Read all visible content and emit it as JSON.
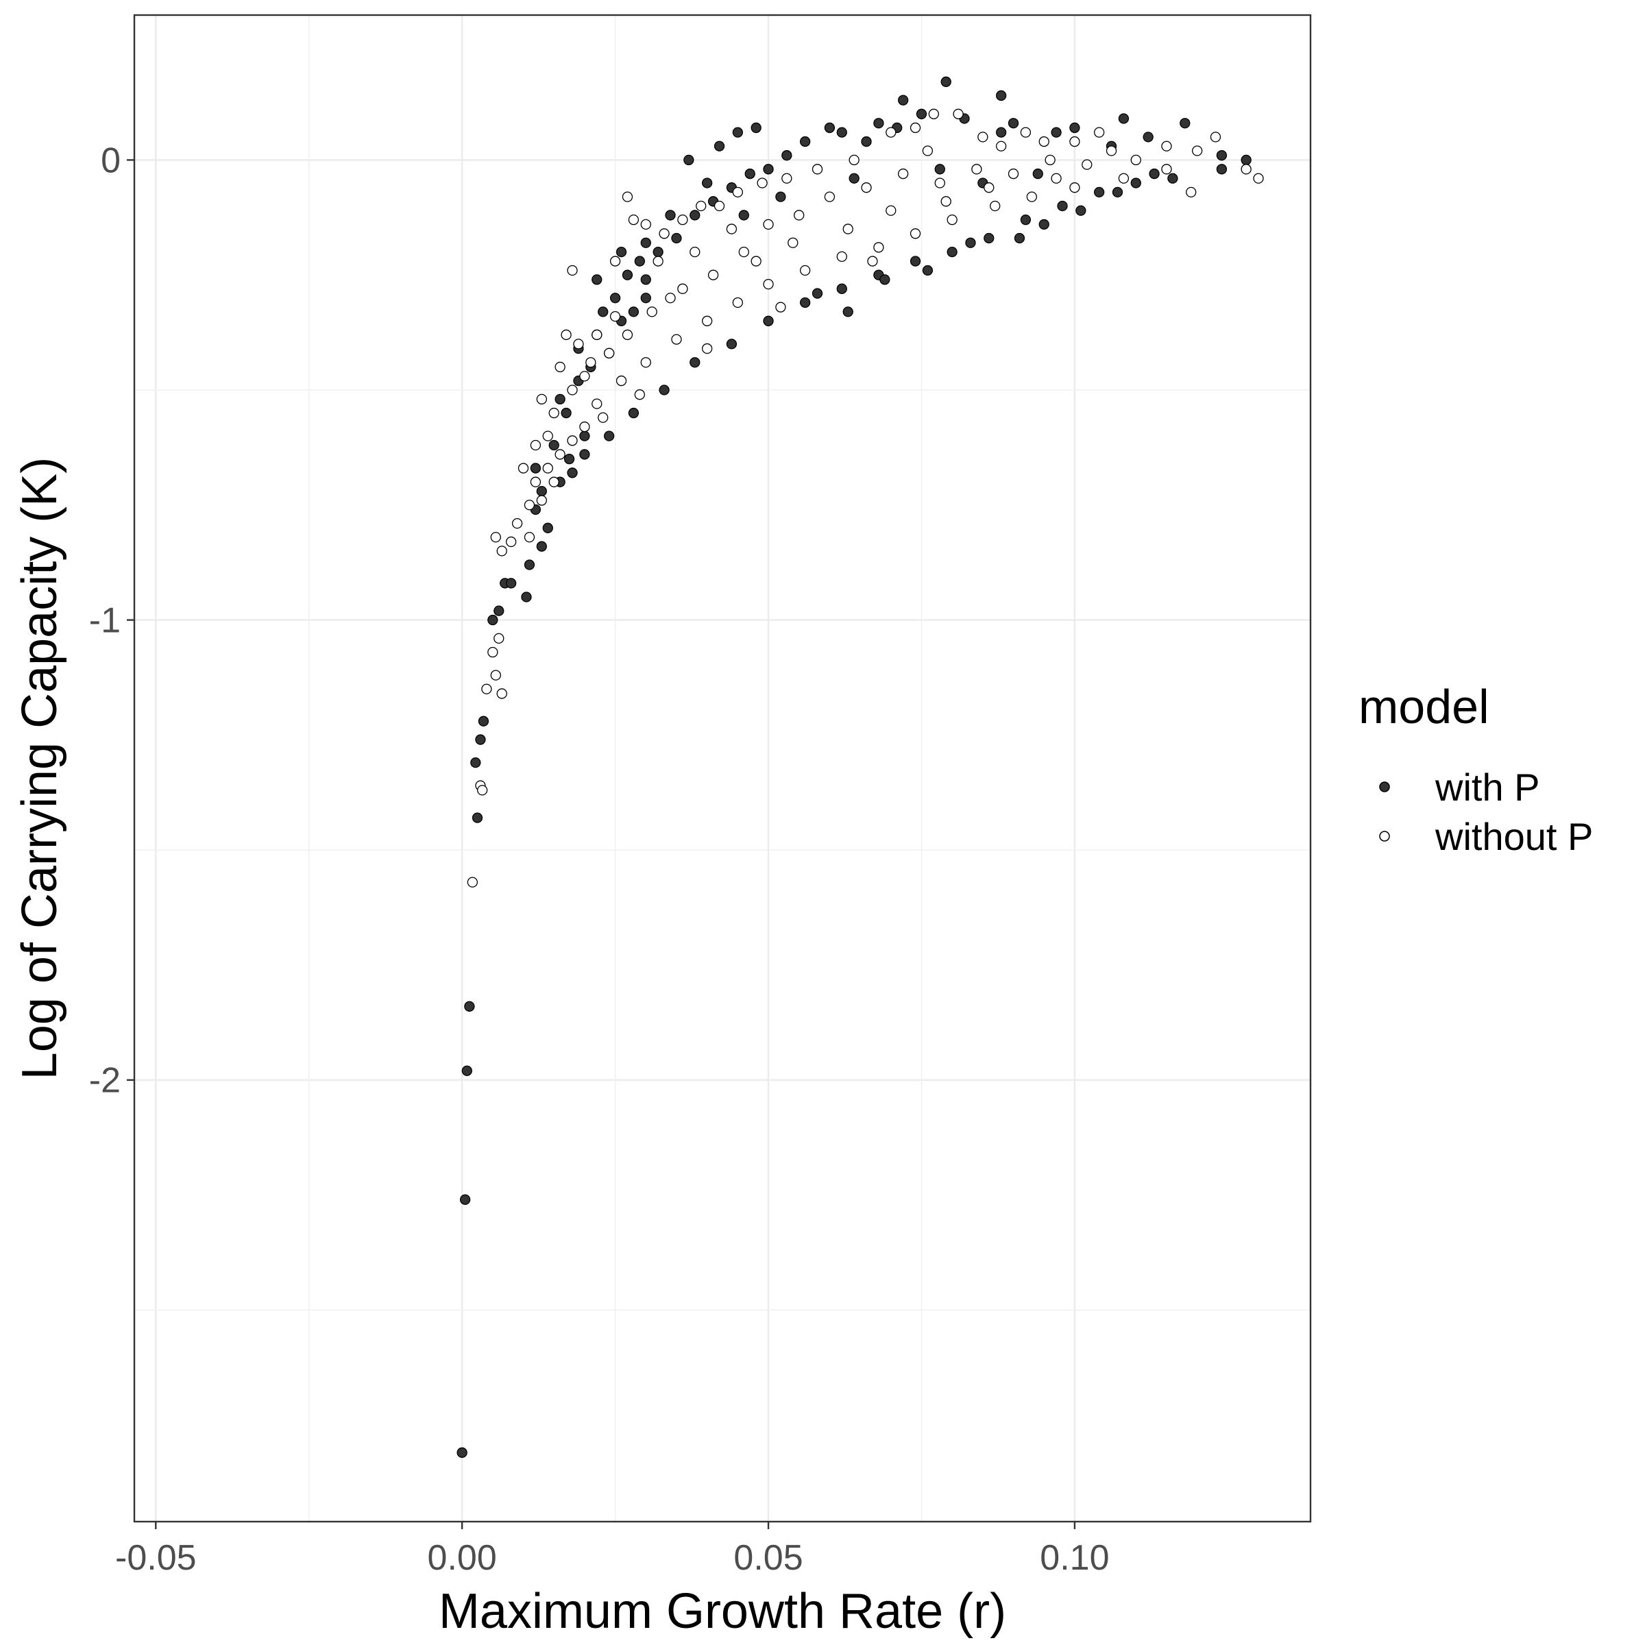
{
  "chart_data": {
    "type": "scatter",
    "xlabel": "Maximum Growth Rate (r)",
    "ylabel": "Log of Carrying Capacity (K)",
    "xlim": [
      -0.0535,
      0.1385
    ],
    "ylim": [
      -2.96,
      0.315
    ],
    "x_ticks": [
      -0.05,
      0.0,
      0.05,
      0.1
    ],
    "x_tick_labels": [
      "-0.05",
      "0.00",
      "0.05",
      "0.10"
    ],
    "y_ticks": [
      0,
      -1,
      -2
    ],
    "y_tick_labels": [
      "0",
      "-1",
      "-2"
    ],
    "grid": true,
    "legend_position": "right",
    "legend_title": "model",
    "series": [
      {
        "name": "with P",
        "fill": "#333333",
        "points": [
          [
            0.0,
            -2.81
          ],
          [
            0.0005,
            -2.26
          ],
          [
            0.0008,
            -1.98
          ],
          [
            0.0012,
            -1.84
          ],
          [
            0.0025,
            -1.43
          ],
          [
            0.0022,
            -1.31
          ],
          [
            0.003,
            -1.26
          ],
          [
            0.0035,
            -1.22
          ],
          [
            0.005,
            -1.0
          ],
          [
            0.006,
            -0.98
          ],
          [
            0.007,
            -0.92
          ],
          [
            0.008,
            -0.92
          ],
          [
            0.0105,
            -0.95
          ],
          [
            0.011,
            -0.88
          ],
          [
            0.013,
            -0.84
          ],
          [
            0.012,
            -0.76
          ],
          [
            0.014,
            -0.8
          ],
          [
            0.016,
            -0.7
          ],
          [
            0.0175,
            -0.65
          ],
          [
            0.02,
            -0.6
          ],
          [
            0.016,
            -0.52
          ],
          [
            0.019,
            -0.48
          ],
          [
            0.021,
            -0.45
          ],
          [
            0.024,
            -0.42
          ],
          [
            0.022,
            -0.38
          ],
          [
            0.026,
            -0.35
          ],
          [
            0.028,
            -0.33
          ],
          [
            0.03,
            -0.3
          ],
          [
            0.023,
            -0.33
          ],
          [
            0.025,
            -0.3
          ],
          [
            0.027,
            -0.25
          ],
          [
            0.029,
            -0.22
          ],
          [
            0.032,
            -0.2
          ],
          [
            0.035,
            -0.17
          ],
          [
            0.038,
            -0.12
          ],
          [
            0.041,
            -0.09
          ],
          [
            0.044,
            -0.06
          ],
          [
            0.047,
            -0.03
          ],
          [
            0.05,
            -0.02
          ],
          [
            0.053,
            0.01
          ],
          [
            0.037,
            0.0
          ],
          [
            0.042,
            0.03
          ],
          [
            0.045,
            0.06
          ],
          [
            0.048,
            0.07
          ],
          [
            0.056,
            0.04
          ],
          [
            0.062,
            0.06
          ],
          [
            0.068,
            0.08
          ],
          [
            0.075,
            0.1
          ],
          [
            0.079,
            0.17
          ],
          [
            0.088,
            0.14
          ],
          [
            0.072,
            0.13
          ],
          [
            0.06,
            0.07
          ],
          [
            0.082,
            0.09
          ],
          [
            0.09,
            0.08
          ],
          [
            0.1,
            0.07
          ],
          [
            0.108,
            0.09
          ],
          [
            0.112,
            0.05
          ],
          [
            0.118,
            0.08
          ],
          [
            0.124,
            0.01
          ],
          [
            0.128,
            0.0
          ],
          [
            0.124,
            -0.02
          ],
          [
            0.116,
            -0.04
          ],
          [
            0.11,
            -0.05
          ],
          [
            0.104,
            -0.07
          ],
          [
            0.098,
            -0.1
          ],
          [
            0.092,
            -0.13
          ],
          [
            0.086,
            -0.17
          ],
          [
            0.08,
            -0.2
          ],
          [
            0.074,
            -0.22
          ],
          [
            0.068,
            -0.25
          ],
          [
            0.062,
            -0.28
          ],
          [
            0.056,
            -0.31
          ],
          [
            0.05,
            -0.35
          ],
          [
            0.044,
            -0.4
          ],
          [
            0.038,
            -0.44
          ],
          [
            0.033,
            -0.5
          ],
          [
            0.028,
            -0.55
          ],
          [
            0.024,
            -0.6
          ],
          [
            0.02,
            -0.64
          ],
          [
            0.018,
            -0.68
          ],
          [
            0.058,
            -0.29
          ],
          [
            0.063,
            -0.33
          ],
          [
            0.069,
            -0.26
          ],
          [
            0.076,
            -0.24
          ],
          [
            0.083,
            -0.18
          ],
          [
            0.091,
            -0.17
          ],
          [
            0.095,
            -0.14
          ],
          [
            0.101,
            -0.11
          ],
          [
            0.107,
            -0.07
          ],
          [
            0.113,
            -0.03
          ],
          [
            0.106,
            0.03
          ],
          [
            0.097,
            0.06
          ],
          [
            0.088,
            0.06
          ],
          [
            0.071,
            0.07
          ],
          [
            0.066,
            0.04
          ],
          [
            0.04,
            -0.05
          ],
          [
            0.034,
            -0.12
          ],
          [
            0.03,
            -0.18
          ],
          [
            0.026,
            -0.2
          ],
          [
            0.022,
            -0.26
          ],
          [
            0.019,
            -0.41
          ],
          [
            0.017,
            -0.55
          ],
          [
            0.015,
            -0.62
          ],
          [
            0.013,
            -0.72
          ],
          [
            0.012,
            -0.67
          ],
          [
            0.03,
            -0.26
          ],
          [
            0.046,
            -0.12
          ],
          [
            0.052,
            -0.08
          ],
          [
            0.064,
            -0.04
          ],
          [
            0.078,
            -0.02
          ],
          [
            0.085,
            -0.05
          ],
          [
            0.094,
            -0.03
          ]
        ]
      },
      {
        "name": "without P",
        "fill": "#ffffff",
        "points": [
          [
            0.0017,
            -1.57
          ],
          [
            0.003,
            -1.36
          ],
          [
            0.0033,
            -1.37
          ],
          [
            0.004,
            -1.15
          ],
          [
            0.005,
            -1.07
          ],
          [
            0.006,
            -1.04
          ],
          [
            0.0065,
            -1.16
          ],
          [
            0.0055,
            -1.12
          ],
          [
            0.0055,
            -0.82
          ],
          [
            0.0065,
            -0.85
          ],
          [
            0.008,
            -0.83
          ],
          [
            0.009,
            -0.79
          ],
          [
            0.011,
            -0.82
          ],
          [
            0.01,
            -0.67
          ],
          [
            0.012,
            -0.62
          ],
          [
            0.014,
            -0.6
          ],
          [
            0.013,
            -0.52
          ],
          [
            0.015,
            -0.55
          ],
          [
            0.018,
            -0.5
          ],
          [
            0.02,
            -0.47
          ],
          [
            0.016,
            -0.45
          ],
          [
            0.019,
            -0.4
          ],
          [
            0.022,
            -0.38
          ],
          [
            0.025,
            -0.34
          ],
          [
            0.018,
            -0.24
          ],
          [
            0.025,
            -0.22
          ],
          [
            0.027,
            -0.08
          ],
          [
            0.028,
            -0.13
          ],
          [
            0.03,
            -0.14
          ],
          [
            0.033,
            -0.16
          ],
          [
            0.036,
            -0.13
          ],
          [
            0.039,
            -0.1
          ],
          [
            0.042,
            -0.1
          ],
          [
            0.045,
            -0.07
          ],
          [
            0.049,
            -0.05
          ],
          [
            0.053,
            -0.04
          ],
          [
            0.07,
            0.06
          ],
          [
            0.074,
            0.07
          ],
          [
            0.081,
            0.1
          ],
          [
            0.077,
            0.1
          ],
          [
            0.085,
            0.05
          ],
          [
            0.092,
            0.06
          ],
          [
            0.1,
            0.04
          ],
          [
            0.106,
            0.02
          ],
          [
            0.115,
            0.03
          ],
          [
            0.12,
            0.02
          ],
          [
            0.123,
            0.05
          ],
          [
            0.128,
            -0.02
          ],
          [
            0.13,
            -0.04
          ],
          [
            0.119,
            -0.07
          ],
          [
            0.115,
            -0.02
          ],
          [
            0.108,
            -0.04
          ],
          [
            0.1,
            -0.06
          ],
          [
            0.093,
            -0.08
          ],
          [
            0.087,
            -0.1
          ],
          [
            0.08,
            -0.13
          ],
          [
            0.074,
            -0.16
          ],
          [
            0.068,
            -0.19
          ],
          [
            0.062,
            -0.21
          ],
          [
            0.056,
            -0.24
          ],
          [
            0.05,
            -0.27
          ],
          [
            0.045,
            -0.31
          ],
          [
            0.04,
            -0.35
          ],
          [
            0.035,
            -0.39
          ],
          [
            0.03,
            -0.44
          ],
          [
            0.026,
            -0.48
          ],
          [
            0.022,
            -0.53
          ],
          [
            0.02,
            -0.58
          ],
          [
            0.016,
            -0.64
          ],
          [
            0.014,
            -0.67
          ],
          [
            0.012,
            -0.7
          ],
          [
            0.011,
            -0.75
          ],
          [
            0.032,
            -0.22
          ],
          [
            0.038,
            -0.2
          ],
          [
            0.044,
            -0.15
          ],
          [
            0.05,
            -0.14
          ],
          [
            0.055,
            -0.12
          ],
          [
            0.06,
            -0.08
          ],
          [
            0.066,
            -0.06
          ],
          [
            0.072,
            -0.03
          ],
          [
            0.078,
            -0.05
          ],
          [
            0.084,
            -0.02
          ],
          [
            0.09,
            -0.03
          ],
          [
            0.096,
            0.0
          ],
          [
            0.102,
            -0.01
          ],
          [
            0.11,
            0.0
          ],
          [
            0.104,
            0.06
          ],
          [
            0.095,
            0.04
          ],
          [
            0.088,
            0.03
          ],
          [
            0.076,
            0.02
          ],
          [
            0.064,
            0.0
          ],
          [
            0.058,
            -0.02
          ],
          [
            0.046,
            -0.2
          ],
          [
            0.041,
            -0.25
          ],
          [
            0.036,
            -0.28
          ],
          [
            0.031,
            -0.33
          ],
          [
            0.027,
            -0.38
          ],
          [
            0.024,
            -0.42
          ],
          [
            0.021,
            -0.44
          ],
          [
            0.034,
            -0.3
          ],
          [
            0.048,
            -0.22
          ],
          [
            0.054,
            -0.18
          ],
          [
            0.063,
            -0.15
          ],
          [
            0.07,
            -0.11
          ],
          [
            0.079,
            -0.09
          ],
          [
            0.086,
            -0.06
          ],
          [
            0.097,
            -0.04
          ],
          [
            0.067,
            -0.22
          ],
          [
            0.052,
            -0.32
          ],
          [
            0.04,
            -0.41
          ],
          [
            0.029,
            -0.51
          ],
          [
            0.023,
            -0.56
          ],
          [
            0.018,
            -0.61
          ],
          [
            0.015,
            -0.7
          ],
          [
            0.013,
            -0.74
          ],
          [
            0.017,
            -0.38
          ]
        ]
      }
    ]
  }
}
